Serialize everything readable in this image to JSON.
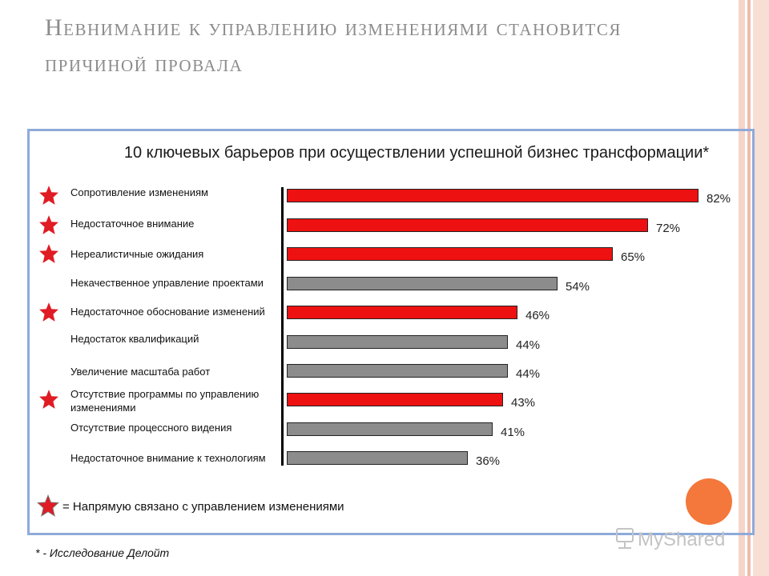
{
  "slide": {
    "title": "Невнимание к управлению изменениями становится причиной провала",
    "footnote": "* - Исследование Делойт",
    "legend_text": "= Напрямую связано с управлением изменениями",
    "watermark": "MyShared"
  },
  "colors": {
    "highlight_bar": "#ee1111",
    "normal_bar": "#8c8c8c",
    "star": "#e01b24",
    "panel_border": "#8eaadb",
    "title_text": "#8c8c8c",
    "accent_circle": "#f4773b",
    "stripe_light": "#f6d5c9",
    "stripe_dark": "#eebdad"
  },
  "chart_data": {
    "type": "bar",
    "orientation": "horizontal",
    "title": "10 ключевых барьеров при осуществлении успешной бизнес трансформации*",
    "categories": [
      "Сопротивление изменениям",
      "Недостаточное внимание",
      "Нереалистичные ожидания",
      "Некачественное управление проектами",
      "Недостаточное обоснование изменений",
      "Недостаток квалификаций",
      "Увеличение масштаба работ",
      "Отсутствие программы по управлению изменениями",
      "Отсутствие процессного видения",
      "Недостаточное внимание к технологиям"
    ],
    "values": [
      82,
      72,
      65,
      54,
      46,
      44,
      44,
      43,
      41,
      36
    ],
    "value_labels": [
      "82%",
      "72%",
      "65%",
      "54%",
      "46%",
      "44%",
      "44%",
      "43%",
      "41%",
      "36%"
    ],
    "highlighted": [
      true,
      true,
      true,
      false,
      true,
      false,
      false,
      true,
      false,
      false
    ],
    "xlim": [
      0,
      100
    ],
    "grid": false,
    "legend": "bottom-left"
  }
}
